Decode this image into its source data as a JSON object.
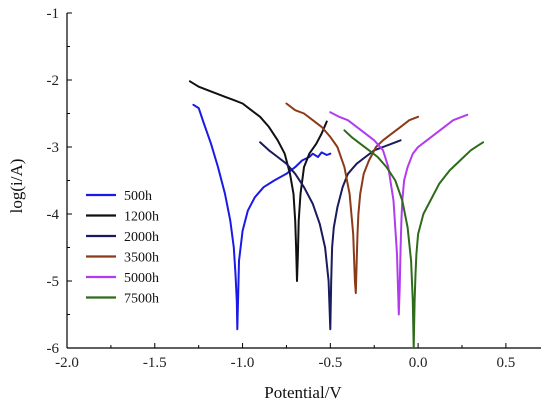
{
  "chart_data": {
    "type": "line",
    "title": "",
    "xlabel": "Potential/V",
    "ylabel": "log(i/A)",
    "xlim": [
      -2.0,
      0.7
    ],
    "ylim": [
      -6,
      -1
    ],
    "xticks": [
      -2.0,
      -1.5,
      -1.0,
      -0.5,
      0.0,
      0.5
    ],
    "xtick_labels": [
      "-2.0",
      "-1.5",
      "-1.0",
      "-0.5",
      "0.0",
      "0.5"
    ],
    "yticks": [
      -6,
      -5,
      -4,
      -3,
      -2,
      -1
    ],
    "ytick_labels": [
      "-6",
      "-5",
      "-4",
      "-3",
      "-2",
      "-1"
    ],
    "grid": false,
    "legend_position": "left",
    "series": [
      {
        "name": "500h",
        "color": "#1a1ae6",
        "x": [
          -1.28,
          -1.25,
          -1.22,
          -1.18,
          -1.14,
          -1.1,
          -1.07,
          -1.05,
          -1.04,
          -1.033,
          -1.03,
          -1.025,
          -1.02,
          -1.0,
          -0.97,
          -0.93,
          -0.88,
          -0.82,
          -0.75,
          -0.7,
          -0.66,
          -0.62,
          -0.6,
          -0.57,
          -0.55,
          -0.52,
          -0.5
        ],
        "y": [
          -2.37,
          -2.42,
          -2.65,
          -2.95,
          -3.3,
          -3.7,
          -4.1,
          -4.5,
          -4.9,
          -5.3,
          -5.72,
          -5.2,
          -4.7,
          -4.25,
          -3.95,
          -3.75,
          -3.6,
          -3.5,
          -3.4,
          -3.3,
          -3.2,
          -3.15,
          -3.1,
          -3.15,
          -3.08,
          -3.12,
          -3.1
        ]
      },
      {
        "name": "1200h",
        "color": "#111111",
        "x": [
          -1.3,
          -1.25,
          -1.2,
          -1.15,
          -1.1,
          -1.05,
          -1.0,
          -0.95,
          -0.9,
          -0.85,
          -0.8,
          -0.76,
          -0.73,
          -0.71,
          -0.7,
          -0.695,
          -0.69,
          -0.685,
          -0.68,
          -0.67,
          -0.65,
          -0.62,
          -0.58,
          -0.55,
          -0.52
        ],
        "y": [
          -2.02,
          -2.1,
          -2.15,
          -2.2,
          -2.25,
          -2.3,
          -2.35,
          -2.45,
          -2.55,
          -2.7,
          -2.9,
          -3.1,
          -3.4,
          -3.7,
          -4.1,
          -4.5,
          -5.0,
          -4.6,
          -4.1,
          -3.7,
          -3.3,
          -3.1,
          -2.95,
          -2.8,
          -2.62
        ]
      },
      {
        "name": "2000h",
        "color": "#1a1a5e",
        "x": [
          -0.9,
          -0.85,
          -0.8,
          -0.75,
          -0.7,
          -0.65,
          -0.6,
          -0.56,
          -0.53,
          -0.51,
          -0.5,
          -0.495,
          -0.49,
          -0.48,
          -0.46,
          -0.43,
          -0.4,
          -0.35,
          -0.3,
          -0.25,
          -0.2,
          -0.15,
          -0.1
        ],
        "y": [
          -2.93,
          -3.05,
          -3.15,
          -3.25,
          -3.4,
          -3.6,
          -3.85,
          -4.15,
          -4.5,
          -5.0,
          -5.72,
          -5.0,
          -4.5,
          -4.2,
          -3.9,
          -3.6,
          -3.4,
          -3.25,
          -3.15,
          -3.05,
          -3.0,
          -2.95,
          -2.9
        ]
      },
      {
        "name": "3500h",
        "color": "#8b3a1a",
        "x": [
          -0.75,
          -0.7,
          -0.65,
          -0.6,
          -0.55,
          -0.5,
          -0.46,
          -0.42,
          -0.39,
          -0.37,
          -0.36,
          -0.355,
          -0.35,
          -0.345,
          -0.34,
          -0.33,
          -0.31,
          -0.28,
          -0.24,
          -0.2,
          -0.15,
          -0.1,
          -0.05,
          0.0
        ],
        "y": [
          -2.35,
          -2.45,
          -2.5,
          -2.6,
          -2.7,
          -2.85,
          -3.0,
          -3.3,
          -3.7,
          -4.3,
          -5.0,
          -5.18,
          -4.7,
          -4.3,
          -4.0,
          -3.7,
          -3.4,
          -3.2,
          -3.0,
          -2.9,
          -2.8,
          -2.7,
          -2.6,
          -2.55
        ]
      },
      {
        "name": "5000h",
        "color": "#b23bf0",
        "x": [
          -0.5,
          -0.45,
          -0.4,
          -0.35,
          -0.3,
          -0.25,
          -0.2,
          -0.17,
          -0.14,
          -0.12,
          -0.11,
          -0.105,
          -0.1,
          -0.095,
          -0.09,
          -0.08,
          -0.06,
          -0.03,
          0.0,
          0.05,
          0.1,
          0.15,
          0.2,
          0.25,
          0.28
        ],
        "y": [
          -2.48,
          -2.55,
          -2.6,
          -2.7,
          -2.8,
          -2.9,
          -3.05,
          -3.3,
          -3.8,
          -4.6,
          -5.5,
          -5.1,
          -4.5,
          -4.1,
          -3.8,
          -3.5,
          -3.3,
          -3.1,
          -3.0,
          -2.9,
          -2.8,
          -2.7,
          -2.6,
          -2.55,
          -2.52
        ]
      },
      {
        "name": "7500h",
        "color": "#2e6b1a",
        "x": [
          -0.42,
          -0.38,
          -0.33,
          -0.28,
          -0.23,
          -0.18,
          -0.13,
          -0.09,
          -0.06,
          -0.04,
          -0.03,
          -0.025,
          -0.02,
          -0.015,
          -0.01,
          0.0,
          0.03,
          0.07,
          0.12,
          0.18,
          0.24,
          0.3,
          0.34,
          0.37
        ],
        "y": [
          -2.75,
          -2.85,
          -2.95,
          -3.05,
          -3.15,
          -3.3,
          -3.5,
          -3.8,
          -4.2,
          -4.7,
          -5.3,
          -6.0,
          -5.3,
          -4.9,
          -4.6,
          -4.3,
          -4.0,
          -3.8,
          -3.55,
          -3.35,
          -3.2,
          -3.05,
          -2.98,
          -2.93
        ]
      }
    ]
  }
}
